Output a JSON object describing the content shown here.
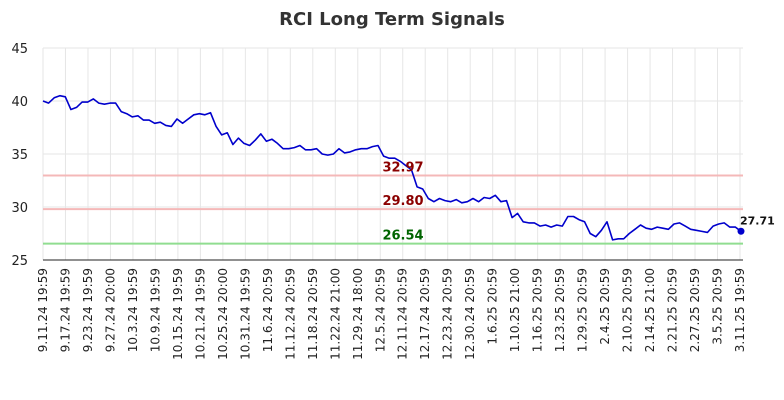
{
  "chart_data": {
    "type": "line",
    "title": "RCI Long Term Signals",
    "xlabel": "",
    "ylabel": "",
    "ylim": [
      25,
      45
    ],
    "yticks": [
      25,
      30,
      35,
      40,
      45
    ],
    "grid": true,
    "xtick_labels": [
      "9.11.24 19:59",
      "9.17.24 19:59",
      "9.23.24 19:59",
      "9.27.24 20:00",
      "10.3.24 19:59",
      "10.9.24 19:59",
      "10.15.24 19:59",
      "10.21.24 19:59",
      "10.25.24 20:00",
      "10.31.24 19:59",
      "11.6.24 20:59",
      "11.12.24 20:59",
      "11.18.24 20:59",
      "11.22.24 21:00",
      "11.29.24 18:00",
      "12.5.24 20:59",
      "12.11.24 20:59",
      "12.17.24 20:59",
      "12.23.24 20:59",
      "12.30.24 20:59",
      "1.6.25 20:59",
      "1.10.25 21:00",
      "1.16.25 20:59",
      "1.23.25 20:59",
      "1.29.25 20:59",
      "2.4.25 20:59",
      "2.10.25 20:59",
      "2.14.25 21:00",
      "2.21.25 20:59",
      "2.27.25 20:59",
      "3.5.25 20:59",
      "3.11.25 19:59"
    ],
    "series": [
      {
        "name": "",
        "color": "#0000cc",
        "values": [
          40.0,
          39.8,
          40.3,
          40.5,
          40.4,
          39.2,
          39.4,
          39.9,
          39.9,
          40.2,
          39.8,
          39.7,
          39.8,
          39.8,
          39.0,
          38.8,
          38.5,
          38.6,
          38.2,
          38.2,
          37.9,
          38.0,
          37.7,
          37.6,
          38.3,
          37.9,
          38.3,
          38.7,
          38.8,
          38.7,
          38.9,
          37.6,
          36.8,
          37.0,
          35.9,
          36.5,
          36.0,
          35.8,
          36.3,
          36.9,
          36.2,
          36.4,
          36.0,
          35.5,
          35.5,
          35.6,
          35.8,
          35.4,
          35.4,
          35.5,
          35.0,
          34.9,
          35.0,
          35.5,
          35.1,
          35.2,
          35.4,
          35.5,
          35.5,
          35.7,
          35.8,
          34.8,
          34.6,
          34.6,
          34.3,
          33.9,
          33.5,
          31.9,
          31.7,
          30.8,
          30.5,
          30.8,
          30.6,
          30.5,
          30.7,
          30.4,
          30.5,
          30.8,
          30.5,
          30.9,
          30.8,
          31.1,
          30.5,
          30.6,
          29.0,
          29.4,
          28.6,
          28.5,
          28.5,
          28.2,
          28.3,
          28.1,
          28.3,
          28.2,
          29.1,
          29.1,
          28.8,
          28.6,
          27.5,
          27.2,
          27.8,
          28.6,
          26.9,
          27.0,
          27.0,
          27.5,
          27.9,
          28.3,
          28.0,
          27.9,
          28.1,
          28.0,
          27.9,
          28.4,
          28.5,
          28.2,
          27.9,
          27.8,
          27.7,
          27.6,
          28.2,
          28.4,
          28.5,
          28.1,
          28.1,
          27.71
        ]
      }
    ],
    "levels": [
      {
        "value": 32.97,
        "label": "32.97",
        "line_color": "#f4b8b8",
        "label_color": "#8b0000"
      },
      {
        "value": 29.8,
        "label": "29.80",
        "line_color": "#f4b8b8",
        "label_color": "#8b0000"
      },
      {
        "value": 26.54,
        "label": "26.54",
        "line_color": "#90dd90",
        "label_color": "#006400"
      }
    ],
    "last_value_label": "27.71"
  }
}
